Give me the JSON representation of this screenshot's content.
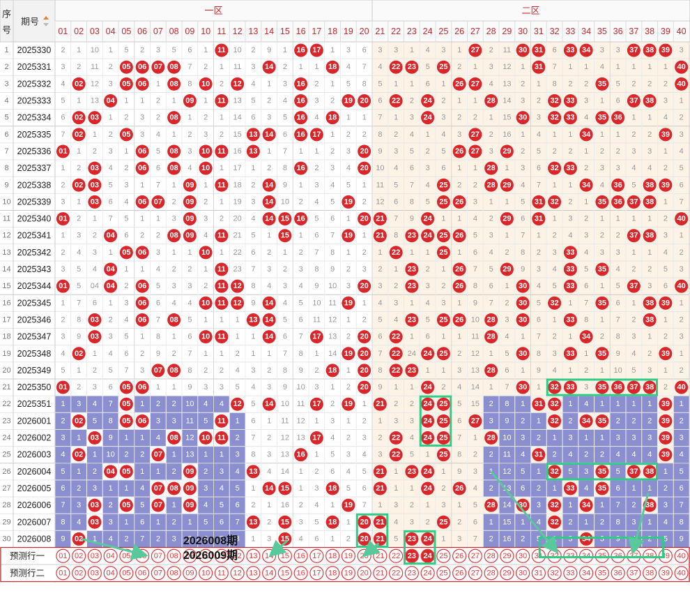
{
  "header": {
    "seq_label": "序号",
    "issue_label": "期号",
    "zone1_label": "一区",
    "zone2_label": "二区",
    "numbers": [
      "01",
      "02",
      "03",
      "04",
      "05",
      "06",
      "07",
      "08",
      "09",
      "10",
      "11",
      "12",
      "13",
      "14",
      "15",
      "16",
      "17",
      "18",
      "19",
      "20",
      "21",
      "22",
      "23",
      "24",
      "25",
      "26",
      "27",
      "28",
      "29",
      "30",
      "31",
      "32",
      "33",
      "34",
      "35",
      "36",
      "37",
      "38",
      "39",
      "40"
    ]
  },
  "colors": {
    "ball_red": "#d9262a",
    "ball_border_red": "#e0393d",
    "purple": "#8c8fcf",
    "zone2_bg": "#fcf3e6",
    "highlight_green": "#2fcc85",
    "arrow_green": "#57c99a",
    "header_red": "#c5282c",
    "miss_text": "#999999"
  },
  "annotations": {
    "label1": "2026008期",
    "label2": "2026009期"
  },
  "predict_rows": [
    {
      "label": "预测行一",
      "filled": [
        "23",
        "24"
      ]
    },
    {
      "label": "预测行二",
      "filled": []
    }
  ],
  "rows": [
    {
      "seq": "1",
      "issue": "2025330",
      "cells": [
        "2",
        "1",
        "10",
        "1",
        "5",
        "2",
        "3",
        "5",
        "6",
        "1",
        "11",
        "10",
        "2",
        "9",
        "1",
        "16",
        "17",
        "1",
        "3",
        "6",
        "3",
        "3",
        "1",
        "4",
        "3",
        "1",
        "27",
        "2",
        "11",
        "30",
        "31",
        "6",
        "33",
        "34",
        "3",
        "3",
        "37",
        "38",
        "39",
        "3"
      ]
    },
    {
      "seq": "2",
      "issue": "2025331",
      "cells": [
        "3",
        "2",
        "11",
        "2",
        "05",
        "06",
        "07",
        "08",
        "7",
        "2",
        "1",
        "11",
        "3",
        "14",
        "2",
        "1",
        "1",
        "18",
        "4",
        "7",
        "4",
        "22",
        "23",
        "5",
        "25",
        "2",
        "1",
        "3",
        "12",
        "1",
        "31",
        "7",
        "1",
        "1",
        "4",
        "1",
        "1",
        "1",
        "1",
        "40"
      ]
    },
    {
      "seq": "3",
      "issue": "2025332",
      "cells": [
        "4",
        "02",
        "12",
        "3",
        "05",
        "06",
        "1",
        "08",
        "8",
        "10",
        "2",
        "12",
        "4",
        "1",
        "3",
        "16",
        "2",
        "1",
        "5",
        "8",
        "5",
        "1",
        "1",
        "6",
        "1",
        "26",
        "27",
        "4",
        "13",
        "2",
        "1",
        "8",
        "2",
        "2",
        "35",
        "5",
        "2",
        "2",
        "2",
        "40"
      ]
    },
    {
      "seq": "4",
      "issue": "2025333",
      "cells": [
        "5",
        "1",
        "13",
        "04",
        "1",
        "1",
        "2",
        "1",
        "09",
        "1",
        "11",
        "13",
        "5",
        "2",
        "4",
        "16",
        "3",
        "2",
        "19",
        "20",
        "6",
        "22",
        "2",
        "24",
        "2",
        "1",
        "1",
        "28",
        "14",
        "3",
        "2",
        "32",
        "33",
        "3",
        "1",
        "6",
        "37",
        "38",
        "3",
        "1"
      ]
    },
    {
      "seq": "5",
      "issue": "2025334",
      "cells": [
        "6",
        "02",
        "03",
        "1",
        "2",
        "3",
        "2",
        "08",
        "1",
        "2",
        "1",
        "14",
        "6",
        "3",
        "5",
        "16",
        "4",
        "18",
        "1",
        "1",
        "7",
        "1",
        "3",
        "24",
        "3",
        "2",
        "2",
        "1",
        "15",
        "30",
        "3",
        "32",
        "33",
        "4",
        "35",
        "36",
        "1",
        "1",
        "4",
        "2"
      ]
    },
    {
      "seq": "6",
      "issue": "2025335",
      "cells": [
        "7",
        "02",
        "1",
        "2",
        "05",
        "3",
        "4",
        "1",
        "2",
        "3",
        "2",
        "15",
        "13",
        "14",
        "6",
        "16",
        "17",
        "1",
        "2",
        "2",
        "8",
        "2",
        "4",
        "1",
        "4",
        "3",
        "27",
        "2",
        "16",
        "1",
        "4",
        "1",
        "1",
        "34",
        "1",
        "1",
        "2",
        "2",
        "39",
        "3"
      ]
    },
    {
      "seq": "7",
      "issue": "2025336",
      "cells": [
        "01",
        "1",
        "2",
        "3",
        "1",
        "06",
        "5",
        "08",
        "3",
        "10",
        "11",
        "16",
        "13",
        "1",
        "7",
        "1",
        "1",
        "2",
        "3",
        "20",
        "9",
        "3",
        "5",
        "2",
        "5",
        "26",
        "27",
        "3",
        "29",
        "2",
        "5",
        "2",
        "2",
        "1",
        "2",
        "2",
        "3",
        "3",
        "1",
        "4"
      ]
    },
    {
      "seq": "8",
      "issue": "2025337",
      "cells": [
        "1",
        "2",
        "03",
        "4",
        "2",
        "06",
        "6",
        "08",
        "4",
        "10",
        "1",
        "17",
        "1",
        "2",
        "8",
        "16",
        "2",
        "3",
        "4",
        "20",
        "10",
        "4",
        "6",
        "3",
        "6",
        "1",
        "1",
        "28",
        "1",
        "3",
        "6",
        "32",
        "33",
        "2",
        "3",
        "3",
        "4",
        "4",
        "2",
        "5"
      ]
    },
    {
      "seq": "9",
      "issue": "2025338",
      "cells": [
        "2",
        "02",
        "03",
        "5",
        "3",
        "1",
        "7",
        "1",
        "09",
        "1",
        "11",
        "18",
        "2",
        "14",
        "9",
        "1",
        "3",
        "4",
        "5",
        "1",
        "11",
        "5",
        "7",
        "4",
        "25",
        "2",
        "2",
        "28",
        "29",
        "4",
        "7",
        "1",
        "1",
        "34",
        "4",
        "36",
        "5",
        "38",
        "39",
        "6"
      ]
    },
    {
      "seq": "10",
      "issue": "2025339",
      "cells": [
        "3",
        "1",
        "03",
        "6",
        "4",
        "06",
        "07",
        "2",
        "09",
        "2",
        "1",
        "19",
        "3",
        "14",
        "10",
        "2",
        "4",
        "5",
        "19",
        "2",
        "12",
        "6",
        "8",
        "5",
        "25",
        "26",
        "3",
        "1",
        "1",
        "5",
        "31",
        "32",
        "2",
        "1",
        "35",
        "36",
        "37",
        "38",
        "1",
        "7"
      ]
    },
    {
      "seq": "11",
      "issue": "2025340",
      "cells": [
        "01",
        "2",
        "1",
        "7",
        "5",
        "1",
        "1",
        "3",
        "09",
        "3",
        "2",
        "20",
        "4",
        "14",
        "15",
        "16",
        "5",
        "6",
        "1",
        "20",
        "21",
        "7",
        "9",
        "24",
        "1",
        "1",
        "4",
        "2",
        "29",
        "6",
        "31",
        "1",
        "3",
        "2",
        "1",
        "1",
        "1",
        "1",
        "2",
        "40"
      ]
    },
    {
      "seq": "12",
      "issue": "2025341",
      "cells": [
        "1",
        "3",
        "2",
        "04",
        "6",
        "2",
        "2",
        "08",
        "09",
        "4",
        "11",
        "21",
        "5",
        "1",
        "15",
        "1",
        "6",
        "7",
        "19",
        "1",
        "21",
        "8",
        "23",
        "24",
        "25",
        "26",
        "5",
        "3",
        "1",
        "7",
        "1",
        "2",
        "4",
        "3",
        "2",
        "2",
        "37",
        "38",
        "3",
        "1"
      ]
    },
    {
      "seq": "13",
      "issue": "2025342",
      "cells": [
        "2",
        "4",
        "3",
        "1",
        "05",
        "06",
        "3",
        "1",
        "1",
        "10",
        "1",
        "22",
        "6",
        "2",
        "1",
        "2",
        "7",
        "8",
        "1",
        "2",
        "1",
        "22",
        "1",
        "1",
        "25",
        "1",
        "6",
        "4",
        "2",
        "8",
        "2",
        "3",
        "33",
        "4",
        "3",
        "3",
        "1",
        "1",
        "4",
        "2"
      ]
    },
    {
      "seq": "14",
      "issue": "2025343",
      "cells": [
        "3",
        "5",
        "4",
        "04",
        "1",
        "1",
        "4",
        "2",
        "2",
        "1",
        "11",
        "23",
        "7",
        "3",
        "2",
        "3",
        "8",
        "9",
        "2",
        "3",
        "2",
        "1",
        "23",
        "2",
        "1",
        "26",
        "7",
        "5",
        "29",
        "9",
        "3",
        "4",
        "33",
        "5",
        "35",
        "4",
        "2",
        "2",
        "5",
        "3"
      ]
    },
    {
      "seq": "15",
      "issue": "2025344",
      "cells": [
        "01",
        "5",
        "04",
        "04",
        "2",
        "06",
        "5",
        "3",
        "3",
        "2",
        "11",
        "12",
        "8",
        "4",
        "3",
        "4",
        "9",
        "10",
        "3",
        "20",
        "3",
        "2",
        "23",
        "3",
        "2",
        "26",
        "8",
        "6",
        "1",
        "30",
        "4",
        "5",
        "33",
        "6",
        "1",
        "5",
        "37",
        "3",
        "6",
        "40"
      ]
    },
    {
      "seq": "16",
      "issue": "2025345",
      "cells": [
        "1",
        "7",
        "6",
        "1",
        "3",
        "06",
        "6",
        "4",
        "4",
        "10",
        "11",
        "12",
        "9",
        "14",
        "4",
        "5",
        "10",
        "11",
        "19",
        "1",
        "4",
        "3",
        "1",
        "4",
        "3",
        "1",
        "9",
        "7",
        "2",
        "30",
        "5",
        "32",
        "1",
        "7",
        "35",
        "6",
        "1",
        "38",
        "39",
        "1"
      ]
    },
    {
      "seq": "17",
      "issue": "2025346",
      "cells": [
        "2",
        "8",
        "03",
        "2",
        "4",
        "06",
        "7",
        "08",
        "5",
        "1",
        "1",
        "1",
        "13",
        "14",
        "5",
        "6",
        "11",
        "12",
        "1",
        "2",
        "5",
        "4",
        "23",
        "5",
        "25",
        "26",
        "10",
        "28",
        "3",
        "30",
        "6",
        "1",
        "33",
        "8",
        "1",
        "7",
        "2",
        "38",
        "1",
        "2"
      ]
    },
    {
      "seq": "18",
      "issue": "2025347",
      "cells": [
        "3",
        "9",
        "03",
        "3",
        "5",
        "1",
        "8",
        "1",
        "6",
        "10",
        "11",
        "1",
        "1",
        "14",
        "6",
        "7",
        "17",
        "13",
        "2",
        "20",
        "6",
        "22",
        "1",
        "6",
        "1",
        "1",
        "11",
        "28",
        "4",
        "1",
        "7",
        "2",
        "1",
        "34",
        "2",
        "8",
        "3",
        "1",
        "2",
        "3"
      ]
    },
    {
      "seq": "19",
      "issue": "2025348",
      "cells": [
        "4",
        "02",
        "1",
        "4",
        "6",
        "2",
        "9",
        "2",
        "7",
        "1",
        "1",
        "2",
        "1",
        "1",
        "7",
        "8",
        "1",
        "14",
        "19",
        "20",
        "7",
        "22",
        "24",
        "24",
        "25",
        "2",
        "12",
        "1",
        "5",
        "30",
        "8",
        "3",
        "33",
        "1",
        "35",
        "9",
        "4",
        "2",
        "39",
        "1"
      ]
    },
    {
      "seq": "20",
      "issue": "2025349",
      "cells": [
        "5",
        "1",
        "2",
        "5",
        "7",
        "3",
        "07",
        "08",
        "8",
        "2",
        "2",
        "4",
        "3",
        "2",
        "8",
        "9",
        "2",
        "18",
        "1",
        "20",
        "8",
        "22",
        "23",
        "1",
        "1",
        "3",
        "13",
        "28",
        "6",
        "1",
        "9",
        "4",
        "1",
        "2",
        "1",
        "10",
        "5",
        "3",
        "1",
        "2"
      ]
    },
    {
      "seq": "21",
      "issue": "2025350",
      "cells": [
        "01",
        "2",
        "3",
        "6",
        "05",
        "06",
        "1",
        "1",
        "9",
        "3",
        "3",
        "5",
        "4",
        "3",
        "9",
        "10",
        "3",
        "1",
        "2",
        "20",
        "9",
        "1",
        "1",
        "24",
        "2",
        "4",
        "14",
        "1",
        "7",
        "30",
        "1",
        "32",
        "33",
        "3",
        "35",
        "36",
        "37",
        "38",
        "2",
        "40"
      ]
    },
    {
      "seq": "22",
      "issue": "2025351",
      "cells": [
        "1",
        "3",
        "4",
        "7",
        "05",
        "1",
        "2",
        "2",
        "10",
        "4",
        "4",
        "12",
        "5",
        "14",
        "10",
        "11",
        "17",
        "2",
        "19",
        "1",
        "21",
        "2",
        "2",
        "24",
        "25",
        "5",
        "15",
        "2",
        "8",
        "1",
        "31",
        "32",
        "1",
        "4",
        "1",
        "1",
        "1",
        "1",
        "39",
        "1"
      ]
    },
    {
      "seq": "23",
      "issue": "2026001",
      "cells": [
        "2",
        "02",
        "5",
        "8",
        "05",
        "06",
        "3",
        "3",
        "11",
        "5",
        "11",
        "1",
        "6",
        "1",
        "11",
        "12",
        "1",
        "3",
        "1",
        "2",
        "1",
        "3",
        "3",
        "24",
        "25",
        "6",
        "27",
        "3",
        "9",
        "2",
        "1",
        "32",
        "2",
        "34",
        "35",
        "2",
        "2",
        "2",
        "39",
        "2"
      ]
    },
    {
      "seq": "24",
      "issue": "2026002",
      "cells": [
        "3",
        "1",
        "03",
        "9",
        "1",
        "1",
        "4",
        "08",
        "12",
        "10",
        "11",
        "2",
        "7",
        "2",
        "12",
        "13",
        "17",
        "4",
        "2",
        "3",
        "2",
        "22",
        "4",
        "24",
        "25",
        "7",
        "1",
        "28",
        "10",
        "3",
        "2",
        "1",
        "3",
        "1",
        "1",
        "3",
        "3",
        "3",
        "39",
        "3"
      ]
    },
    {
      "seq": "25",
      "issue": "2026003",
      "cells": [
        "4",
        "02",
        "1",
        "10",
        "2",
        "2",
        "07",
        "1",
        "13",
        "1",
        "1",
        "3",
        "8",
        "3",
        "13",
        "16",
        "1",
        "5",
        "3",
        "4",
        "3",
        "22",
        "5",
        "1",
        "25",
        "8",
        "2",
        "2",
        "11",
        "4",
        "31",
        "2",
        "4",
        "2",
        "2",
        "4",
        "4",
        "4",
        "39",
        "4"
      ]
    },
    {
      "seq": "26",
      "issue": "2026004",
      "cells": [
        "5",
        "1",
        "2",
        "04",
        "05",
        "1",
        "1",
        "2",
        "09",
        "2",
        "3",
        "4",
        "13",
        "4",
        "14",
        "1",
        "2",
        "6",
        "4",
        "5",
        "21",
        "1",
        "23",
        "24",
        "1",
        "9",
        "3",
        "1",
        "12",
        "5",
        "1",
        "32",
        "5",
        "3",
        "35",
        "5",
        "37",
        "38",
        "1",
        "5"
      ]
    },
    {
      "seq": "27",
      "issue": "2026005",
      "cells": [
        "6",
        "2",
        "3",
        "1",
        "1",
        "4",
        "07",
        "08",
        "09",
        "3",
        "4",
        "5",
        "1",
        "14",
        "15",
        "1",
        "3",
        "18",
        "5",
        "6",
        "21",
        "1",
        "1",
        "24",
        "2",
        "26",
        "4",
        "2",
        "13",
        "6",
        "2",
        "1",
        "33",
        "4",
        "35",
        "6",
        "1",
        "1",
        "2",
        "6"
      ]
    },
    {
      "seq": "28",
      "issue": "2026006",
      "cells": [
        "7",
        "3",
        "03",
        "2",
        "05",
        "5",
        "07",
        "1",
        "09",
        "4",
        "5",
        "6",
        "2",
        "1",
        "16",
        "2",
        "4",
        "1",
        "19",
        "7",
        "1",
        "3",
        "2",
        "1",
        "3",
        "1",
        "5",
        "28",
        "14",
        "30",
        "3",
        "32",
        "1",
        "34",
        "1",
        "7",
        "2",
        "38",
        "3",
        "7"
      ]
    },
    {
      "seq": "29",
      "issue": "2026007",
      "cells": [
        "8",
        "4",
        "03",
        "3",
        "1",
        "6",
        "1",
        "2",
        "1",
        "5",
        "6",
        "7",
        "13",
        "2",
        "15",
        "3",
        "5",
        "18",
        "1",
        "20",
        "21",
        "4",
        "3",
        "2",
        "25",
        "2",
        "6",
        "1",
        "15",
        "1",
        "4",
        "32",
        "2",
        "1",
        "2",
        "8",
        "3",
        "1",
        "4",
        "8"
      ]
    },
    {
      "seq": "30",
      "issue": "2026008",
      "cells": [
        "9",
        "02",
        "1",
        "4",
        "2",
        "7",
        "2",
        "3",
        "2",
        "6",
        "7",
        "8",
        "1",
        "3",
        "15",
        "4",
        "6",
        "1",
        "2",
        "20",
        "21",
        "5",
        "23",
        "24",
        "1",
        "3",
        "7",
        "2",
        "16",
        "2",
        "5",
        "1",
        "3",
        "34",
        "3",
        "9",
        "4",
        "2",
        "5",
        "9"
      ]
    }
  ]
}
